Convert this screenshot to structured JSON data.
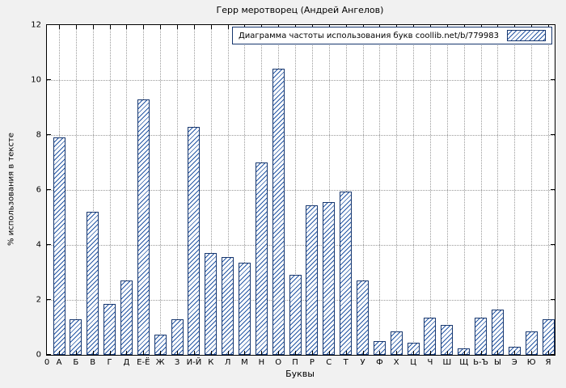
{
  "chart_data": {
    "type": "bar",
    "title": "Герр меротворец (Андрей Ангелов)",
    "legend": "Диаграмма частоты использования букв coollib.net/b/779983",
    "xlabel": "Буквы",
    "ylabel": "% использования в тексте",
    "origin_label": "0",
    "categories": [
      "А",
      "Б",
      "В",
      "Г",
      "Д",
      "Е-Ё",
      "Ж",
      "З",
      "И-Й",
      "К",
      "Л",
      "М",
      "Н",
      "О",
      "П",
      "Р",
      "С",
      "Т",
      "У",
      "Ф",
      "Х",
      "Ц",
      "Ч",
      "Ш",
      "Щ",
      "Ь-Ъ",
      "Ы",
      "Э",
      "Ю",
      "Я"
    ],
    "values": [
      7.9,
      1.3,
      5.2,
      1.85,
      2.7,
      9.3,
      0.75,
      1.3,
      8.3,
      3.7,
      3.55,
      3.35,
      7.0,
      10.4,
      2.9,
      5.45,
      5.55,
      5.95,
      2.7,
      0.5,
      0.85,
      0.45,
      1.35,
      1.1,
      0.25,
      1.35,
      1.65,
      0.3,
      0.85,
      1.3
    ],
    "ylim": [
      0,
      12
    ],
    "yticks": [
      0,
      2,
      4,
      6,
      8,
      10,
      12
    ],
    "grid": true,
    "legend_position": "top-right",
    "bar_fill": "#ffffff",
    "hatch_color": "#2456a4",
    "border_color": "#16366e"
  }
}
